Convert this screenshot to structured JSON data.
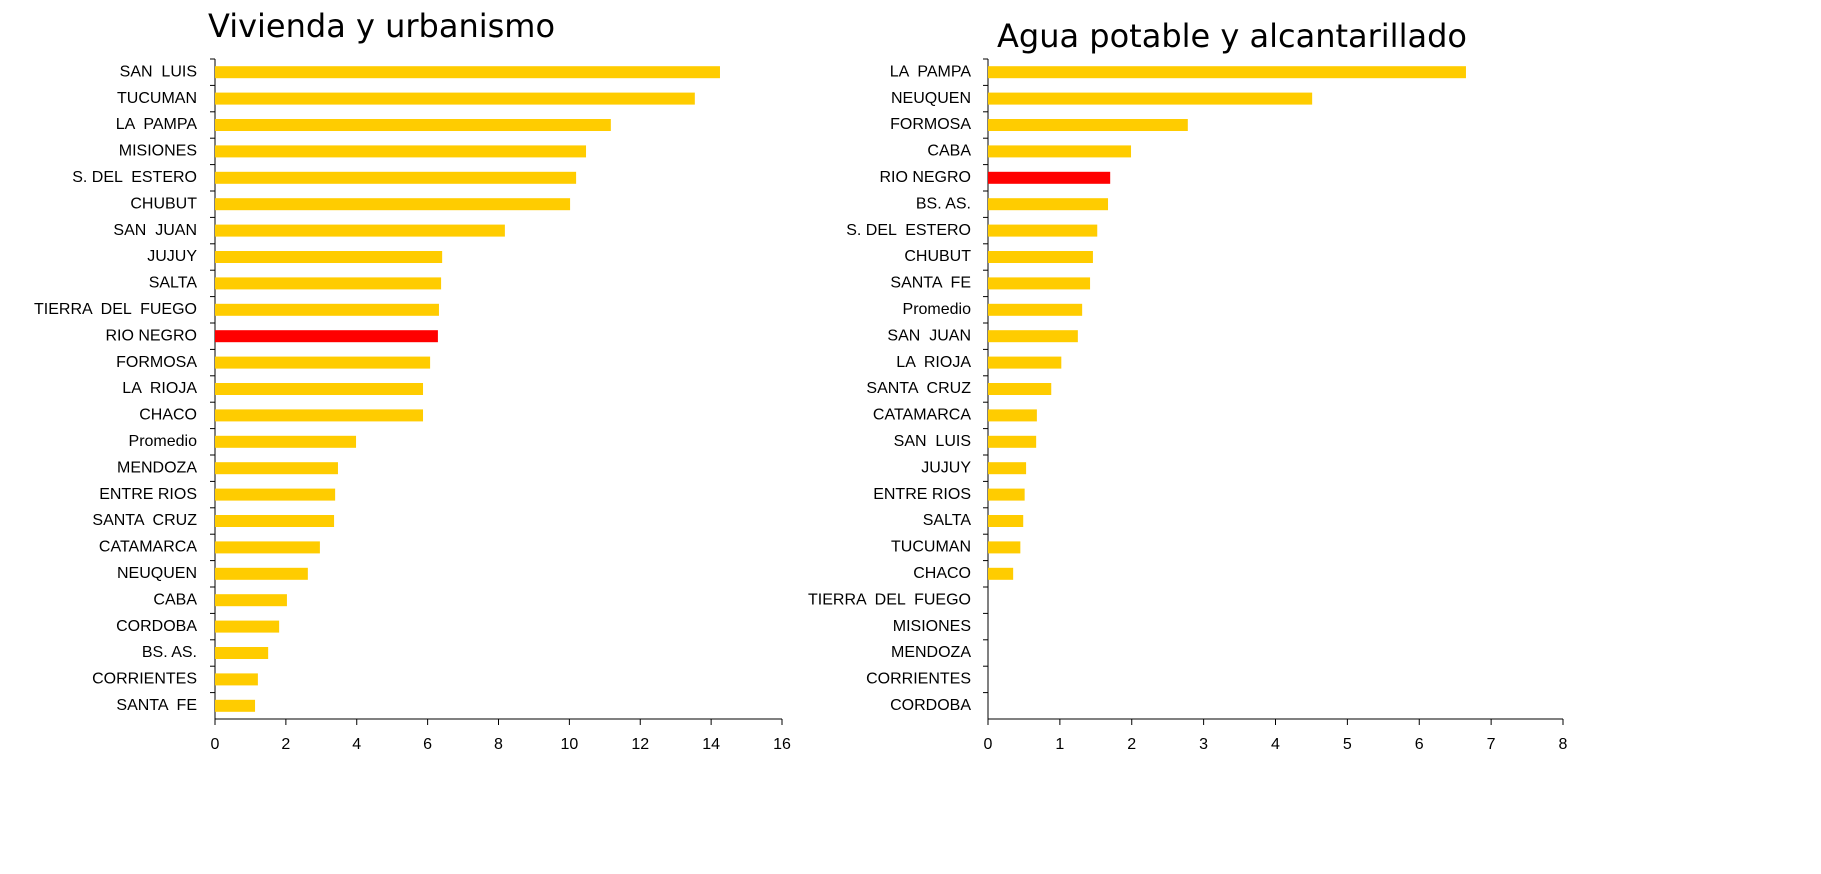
{
  "chart_data": [
    {
      "type": "barh",
      "title": "Vivienda y urbanismo",
      "categories": [
        "SAN  LUIS",
        "TUCUMAN",
        "LA  PAMPA",
        "MISIONES",
        "S. DEL  ESTERO",
        "CHUBUT",
        "SAN  JUAN",
        "JUJUY",
        "SALTA",
        "TIERRA  DEL  FUEGO",
        "RIO NEGRO",
        "FORMOSA",
        "LA  RIOJA",
        "CHACO",
        "Promedio",
        "MENDOZA",
        "ENTRE RIOS",
        "SANTA  CRUZ",
        "CATAMARCA",
        "NEUQUEN",
        "CABA",
        "CORDOBA",
        "BS. AS.",
        "CORRIENTES",
        "SANTA  FE"
      ],
      "values": [
        14.25,
        13.54,
        11.17,
        10.47,
        10.19,
        10.02,
        8.18,
        6.41,
        6.38,
        6.32,
        6.29,
        6.07,
        5.87,
        5.87,
        3.98,
        3.47,
        3.39,
        3.36,
        2.96,
        2.62,
        2.03,
        1.81,
        1.5,
        1.21,
        1.13
      ],
      "colors": [
        "#ffcc00",
        "#ffcc00",
        "#ffcc00",
        "#ffcc00",
        "#ffcc00",
        "#ffcc00",
        "#ffcc00",
        "#ffcc00",
        "#ffcc00",
        "#ffcc00",
        "#ff0000",
        "#ffcc00",
        "#ffcc00",
        "#ffcc00",
        "#ffcc00",
        "#ffcc00",
        "#ffcc00",
        "#ffcc00",
        "#ffcc00",
        "#ffcc00",
        "#ffcc00",
        "#ffcc00",
        "#ffcc00",
        "#ffcc00",
        "#ffcc00"
      ],
      "xlim": [
        0,
        16
      ],
      "xticks": [
        0,
        2,
        4,
        6,
        8,
        10,
        12,
        14,
        16
      ]
    },
    {
      "type": "barh",
      "title": "Agua potable y alcantarillado",
      "categories": [
        "LA  PAMPA",
        "NEUQUEN",
        "FORMOSA",
        "CABA",
        "RIO NEGRO",
        "BS. AS.",
        "S. DEL  ESTERO",
        "CHUBUT",
        "SANTA  FE",
        "Promedio",
        "SAN  JUAN",
        "LA  RIOJA",
        "SANTA  CRUZ",
        "CATAMARCA",
        "SAN  LUIS",
        "JUJUY",
        "ENTRE RIOS",
        "SALTA",
        "TUCUMAN",
        "CHACO",
        "TIERRA  DEL  FUEGO",
        "MISIONES",
        "MENDOZA",
        "CORRIENTES",
        "CORDOBA"
      ],
      "values": [
        6.65,
        4.51,
        2.78,
        1.99,
        1.7,
        1.67,
        1.52,
        1.46,
        1.42,
        1.31,
        1.25,
        1.02,
        0.88,
        0.68,
        0.67,
        0.53,
        0.51,
        0.49,
        0.45,
        0.35,
        0,
        0,
        0,
        0,
        0
      ],
      "colors": [
        "#ffcc00",
        "#ffcc00",
        "#ffcc00",
        "#ffcc00",
        "#ff0000",
        "#ffcc00",
        "#ffcc00",
        "#ffcc00",
        "#ffcc00",
        "#ffcc00",
        "#ffcc00",
        "#ffcc00",
        "#ffcc00",
        "#ffcc00",
        "#ffcc00",
        "#ffcc00",
        "#ffcc00",
        "#ffcc00",
        "#ffcc00",
        "#ffcc00",
        "#ffcc00",
        "#ffcc00",
        "#ffcc00",
        "#ffcc00",
        "#ffcc00"
      ],
      "xlim": [
        0,
        8
      ],
      "xticks": [
        0,
        1,
        2,
        3,
        4,
        5,
        6,
        7,
        8
      ]
    }
  ]
}
